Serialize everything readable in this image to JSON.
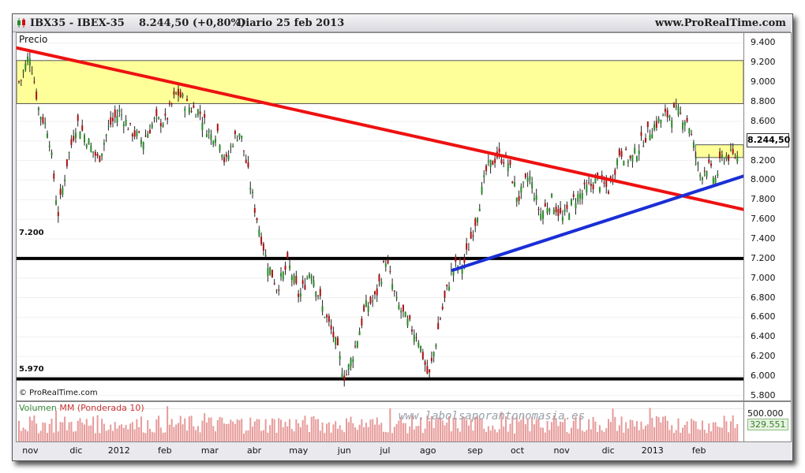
{
  "header": {
    "symbol": "IBX35 - IBEX-35",
    "quote": "8.244,50 (+0,80%)",
    "period": "Diario",
    "date": "25 feb 2013",
    "site": "www.ProRealTime.com"
  },
  "price_panel": {
    "label": "Precio",
    "copyright": "© ProRealTime.com",
    "last_price": "8.244,50",
    "levels": [
      {
        "label": "7.200",
        "value": 7200
      },
      {
        "label": "5.970",
        "value": 5970
      }
    ]
  },
  "volume_panel": {
    "label_volumen": "Volumen",
    "label_mm": "MM (Ponderada 10)",
    "axis_value": "500.000",
    "mm_value": "329.551",
    "watermark": "www.labolsaporantonomasia.es"
  },
  "colors": {
    "resistance_line": "#ee1111",
    "support_line": "#1a2fd6",
    "zone_fill": "#ffff99",
    "up_candle": "#2a8a2a",
    "down_candle": "#aa1111",
    "volume_bar": "#e79a9a"
  },
  "chart_data": {
    "type": "candlestick",
    "ylim": [
      5750,
      9500
    ],
    "y_ticks": [
      "9.400",
      "9.200",
      "9.000",
      "8.800",
      "8.600",
      "8.400",
      "8.200",
      "8.000",
      "7.800",
      "7.600",
      "7.400",
      "7.200",
      "7.000",
      "6.800",
      "6.600",
      "6.400",
      "6.200",
      "6.000",
      "5.800"
    ],
    "x_labels": [
      "nov",
      "dic",
      "2012",
      "feb",
      "mar",
      "abr",
      "may",
      "jun",
      "jul",
      "ago",
      "sep",
      "oct",
      "nov",
      "dic",
      "2013",
      "feb"
    ],
    "path": [
      [
        "nov",
        9000
      ],
      [
        "nov",
        9300
      ],
      [
        "nov",
        8700
      ],
      [
        "nov",
        8500
      ],
      [
        "nov",
        7650
      ],
      [
        "nov",
        8200
      ],
      [
        "dic",
        8600
      ],
      [
        "dic",
        8400
      ],
      [
        "dic",
        8200
      ],
      [
        "dic",
        8550
      ],
      [
        "2012",
        8700
      ],
      [
        "2012",
        8500
      ],
      [
        "2012",
        8400
      ],
      [
        "2012",
        8600
      ],
      [
        "feb",
        8600
      ],
      [
        "feb",
        8900
      ],
      [
        "feb",
        8750
      ],
      [
        "feb",
        8700
      ],
      [
        "mar",
        8450
      ],
      [
        "mar",
        8500
      ],
      [
        "mar",
        8150
      ],
      [
        "mar",
        8400
      ],
      [
        "mar",
        8500
      ],
      [
        "mar",
        8100
      ],
      [
        "abr",
        7700
      ],
      [
        "abr",
        7200
      ],
      [
        "abr",
        6900
      ],
      [
        "abr",
        7150
      ],
      [
        "may",
        6800
      ],
      [
        "may",
        7100
      ],
      [
        "may",
        6700
      ],
      [
        "may",
        6400
      ],
      [
        "jun",
        5970
      ],
      [
        "jun",
        6300
      ],
      [
        "jun",
        6700
      ],
      [
        "jun",
        6800
      ],
      [
        "jul",
        7200
      ],
      [
        "jul",
        6750
      ],
      [
        "jul",
        6550
      ],
      [
        "jul",
        6400
      ],
      [
        "ago",
        5970
      ],
      [
        "ago",
        6600
      ],
      [
        "ago",
        7100
      ],
      [
        "ago",
        7150
      ],
      [
        "sep",
        7600
      ],
      [
        "sep",
        8100
      ],
      [
        "sep",
        8250
      ],
      [
        "sep",
        8200
      ],
      [
        "oct",
        7800
      ],
      [
        "oct",
        8050
      ],
      [
        "oct",
        7650
      ],
      [
        "oct",
        7800
      ],
      [
        "nov",
        7600
      ],
      [
        "nov",
        7800
      ],
      [
        "nov",
        7900
      ],
      [
        "nov",
        8000
      ],
      [
        "dic",
        7900
      ],
      [
        "dic",
        8300
      ],
      [
        "dic",
        8200
      ],
      [
        "dic",
        8400
      ],
      [
        "2013",
        8550
      ],
      [
        "2013",
        8650
      ],
      [
        "2013",
        8700
      ],
      [
        "2013",
        8600
      ],
      [
        "feb",
        8050
      ],
      [
        "feb",
        8150
      ],
      [
        "feb",
        8000
      ],
      [
        "feb",
        8244.5
      ]
    ],
    "volume_scale_max": 600000,
    "trendlines": [
      {
        "name": "resistance",
        "from": [
          0,
          9350
        ],
        "to": [
          1,
          7700
        ]
      },
      {
        "name": "support",
        "from": [
          0.6,
          7080
        ],
        "to": [
          1,
          8040
        ]
      }
    ],
    "zones": [
      {
        "from": 8780,
        "to": 9220,
        "x_end": 1
      },
      {
        "from": 8230,
        "to": 8360,
        "x_start": 0.934,
        "x_end": 1
      }
    ]
  }
}
